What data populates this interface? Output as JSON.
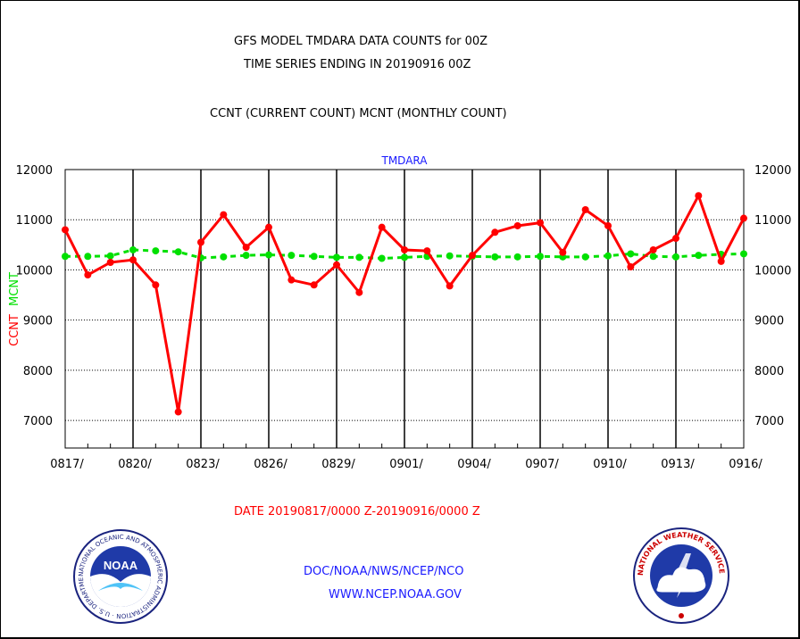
{
  "header": {
    "title_line1": "GFS MODEL TMDARA DATA COUNTS for 00Z",
    "title_line2": "TIME SERIES ENDING IN 20190916 00Z",
    "subtitle": "CCNT (CURRENT COUNT) MCNT (MONTHLY COUNT)"
  },
  "footer": {
    "date_range": "DATE 20190817/0000 Z-20190916/0000 Z",
    "credit_line1": "DOC/NOAA/NWS/NCEP/NCO",
    "credit_line2": "WWW.NCEP.NOAA.GOV"
  },
  "logos": {
    "noaa": {
      "text": "NOAA",
      "ring_text": "NATIONAL OCEANIC AND ATMOSPHERIC ADMINISTRATION · U.S. DEPARTMENT OF COMMERCE"
    },
    "nws": {
      "ring_text": "NATIONAL WEATHER SERVICE"
    }
  },
  "chart_data": {
    "type": "line",
    "title": "TMDARA",
    "ylabel_series1": "CCNT",
    "ylabel_series2": "MCNT",
    "ylim": [
      6450,
      12000
    ],
    "yticks": [
      7000,
      8000,
      9000,
      10000,
      11000,
      12000
    ],
    "ytick_labels": [
      "7000",
      "8000",
      "9000",
      "10000",
      "11000",
      "12000"
    ],
    "xlim": [
      0,
      30
    ],
    "xticks": [
      0,
      3,
      6,
      9,
      12,
      15,
      18,
      21,
      24,
      27,
      30
    ],
    "xtick_labels": [
      "0817/",
      "0820/",
      "0823/",
      "0826/",
      "0829/",
      "0901/",
      "0904/",
      "0907/",
      "0910/",
      "0913/",
      "0916/"
    ],
    "grid": true,
    "x": [
      "0817",
      "0818",
      "0819",
      "0820",
      "0821",
      "0822",
      "0823",
      "0824",
      "0825",
      "0826",
      "0827",
      "0828",
      "0829",
      "0830",
      "0831",
      "0901",
      "0902",
      "0903",
      "0904",
      "0905",
      "0906",
      "0907",
      "0908",
      "0909",
      "0910",
      "0911",
      "0912",
      "0913",
      "0914",
      "0915",
      "0916"
    ],
    "series": [
      {
        "name": "CCNT",
        "color": "#ff0000",
        "style": "solid",
        "values": [
          10800,
          9900,
          10150,
          10200,
          9700,
          7170,
          10550,
          11100,
          10450,
          10850,
          9800,
          9700,
          10100,
          9550,
          10850,
          10400,
          10380,
          9680,
          10290,
          10750,
          10880,
          10940,
          10350,
          11200,
          10880,
          10060,
          10400,
          10630,
          11480,
          10170,
          11030
        ]
      },
      {
        "name": "MCNT",
        "color": "#00e000",
        "style": "dashed",
        "values": [
          10270,
          10270,
          10280,
          10400,
          10380,
          10360,
          10240,
          10260,
          10290,
          10300,
          10290,
          10270,
          10250,
          10250,
          10230,
          10250,
          10270,
          10280,
          10270,
          10260,
          10260,
          10270,
          10260,
          10260,
          10280,
          10320,
          10270,
          10260,
          10290,
          10310,
          10320
        ]
      }
    ]
  }
}
